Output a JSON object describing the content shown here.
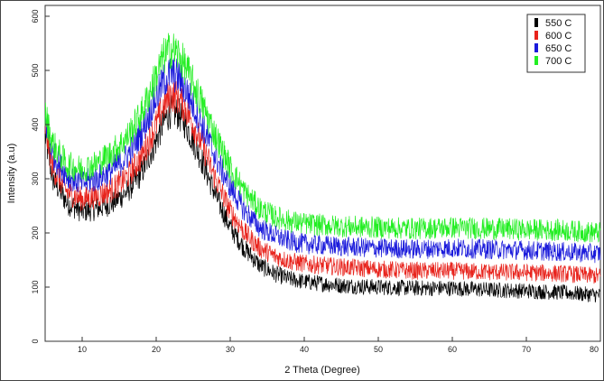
{
  "chart_data": {
    "type": "line",
    "title": "",
    "xlabel": "2 Theta (Degree)",
    "ylabel": "Intensity (a.u)",
    "xlim": [
      5,
      80
    ],
    "ylim": [
      0,
      620
    ],
    "xticks": [
      10,
      20,
      30,
      40,
      50,
      60,
      70,
      80
    ],
    "yticks": [
      0,
      100,
      200,
      300,
      400,
      500,
      600
    ],
    "grid": false,
    "legend_position": "top-right",
    "x": [
      5,
      6,
      8,
      10,
      12,
      14,
      16,
      18,
      20,
      21,
      22,
      23,
      24,
      26,
      28,
      30,
      32,
      34,
      36,
      38,
      40,
      45,
      50,
      55,
      60,
      65,
      70,
      75,
      80
    ],
    "series": [
      {
        "name": "550 C",
        "color": "#000000",
        "values": [
          380,
          300,
          255,
          240,
          245,
          255,
          275,
          310,
          370,
          405,
          425,
          420,
          400,
          340,
          270,
          210,
          170,
          140,
          125,
          115,
          110,
          103,
          100,
          98,
          98,
          95,
          93,
          90,
          85
        ]
      },
      {
        "name": "600 C",
        "color": "#e8231c",
        "values": [
          395,
          320,
          275,
          262,
          268,
          280,
          302,
          340,
          400,
          435,
          455,
          450,
          430,
          370,
          300,
          240,
          200,
          172,
          157,
          148,
          143,
          137,
          133,
          130,
          130,
          128,
          127,
          125,
          120
        ]
      },
      {
        "name": "650 C",
        "color": "#1a1adb",
        "values": [
          410,
          345,
          305,
          292,
          300,
          315,
          340,
          385,
          450,
          480,
          495,
          488,
          465,
          405,
          340,
          285,
          240,
          210,
          195,
          185,
          180,
          175,
          172,
          170,
          172,
          170,
          168,
          165,
          162
        ]
      },
      {
        "name": "700 C",
        "color": "#22ee22",
        "values": [
          420,
          365,
          325,
          318,
          328,
          348,
          375,
          420,
          490,
          525,
          540,
          530,
          505,
          445,
          380,
          320,
          275,
          245,
          230,
          222,
          217,
          212,
          210,
          208,
          210,
          208,
          206,
          205,
          200
        ]
      }
    ]
  }
}
